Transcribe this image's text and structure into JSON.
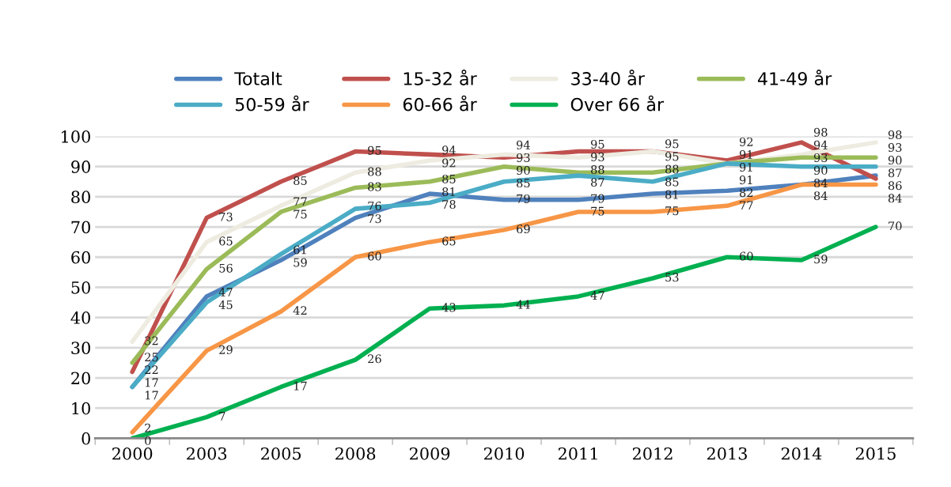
{
  "chart_data": {
    "type": "line",
    "categories": [
      "2000",
      "2003",
      "2005",
      "2008",
      "2009",
      "2010",
      "2011",
      "2012",
      "2013",
      "2014",
      "2015"
    ],
    "series": [
      {
        "name": "Totalt",
        "color": "#4f81bd",
        "values": [
          17,
          47,
          59,
          73,
          81,
          79,
          79,
          81,
          82,
          84,
          87
        ]
      },
      {
        "name": "15-32 år",
        "color": "#c0504d",
        "values": [
          22,
          73,
          85,
          95,
          94,
          93,
          95,
          95,
          92,
          98,
          86
        ]
      },
      {
        "name": "33-40 år",
        "color": "#eeece1",
        "values": [
          32,
          65,
          77,
          88,
          92,
          94,
          93,
          95,
          91,
          94,
          98
        ]
      },
      {
        "name": "41-49 år",
        "color": "#9bbb59",
        "values": [
          25,
          56,
          75,
          83,
          85,
          90,
          88,
          88,
          91,
          93,
          93
        ]
      },
      {
        "name": "50-59 år",
        "color": "#4bacc6",
        "values": [
          17,
          45,
          61,
          76,
          78,
          85,
          87,
          85,
          91,
          90,
          90
        ]
      },
      {
        "name": "60-66 år",
        "color": "#f79646",
        "values": [
          2,
          29,
          42,
          60,
          65,
          69,
          75,
          75,
          77,
          84,
          84
        ]
      },
      {
        "name": "Over 66 år",
        "color": "#00b050",
        "values": [
          0,
          7,
          17,
          26,
          43,
          44,
          47,
          53,
          60,
          59,
          70
        ]
      }
    ],
    "ylim": [
      0,
      100
    ],
    "yticks": [
      0,
      10,
      20,
      30,
      40,
      50,
      60,
      70,
      80,
      90,
      100
    ],
    "grid": "y",
    "legend": "top",
    "data_labels": true,
    "marker": "none",
    "line_style": "solid"
  }
}
